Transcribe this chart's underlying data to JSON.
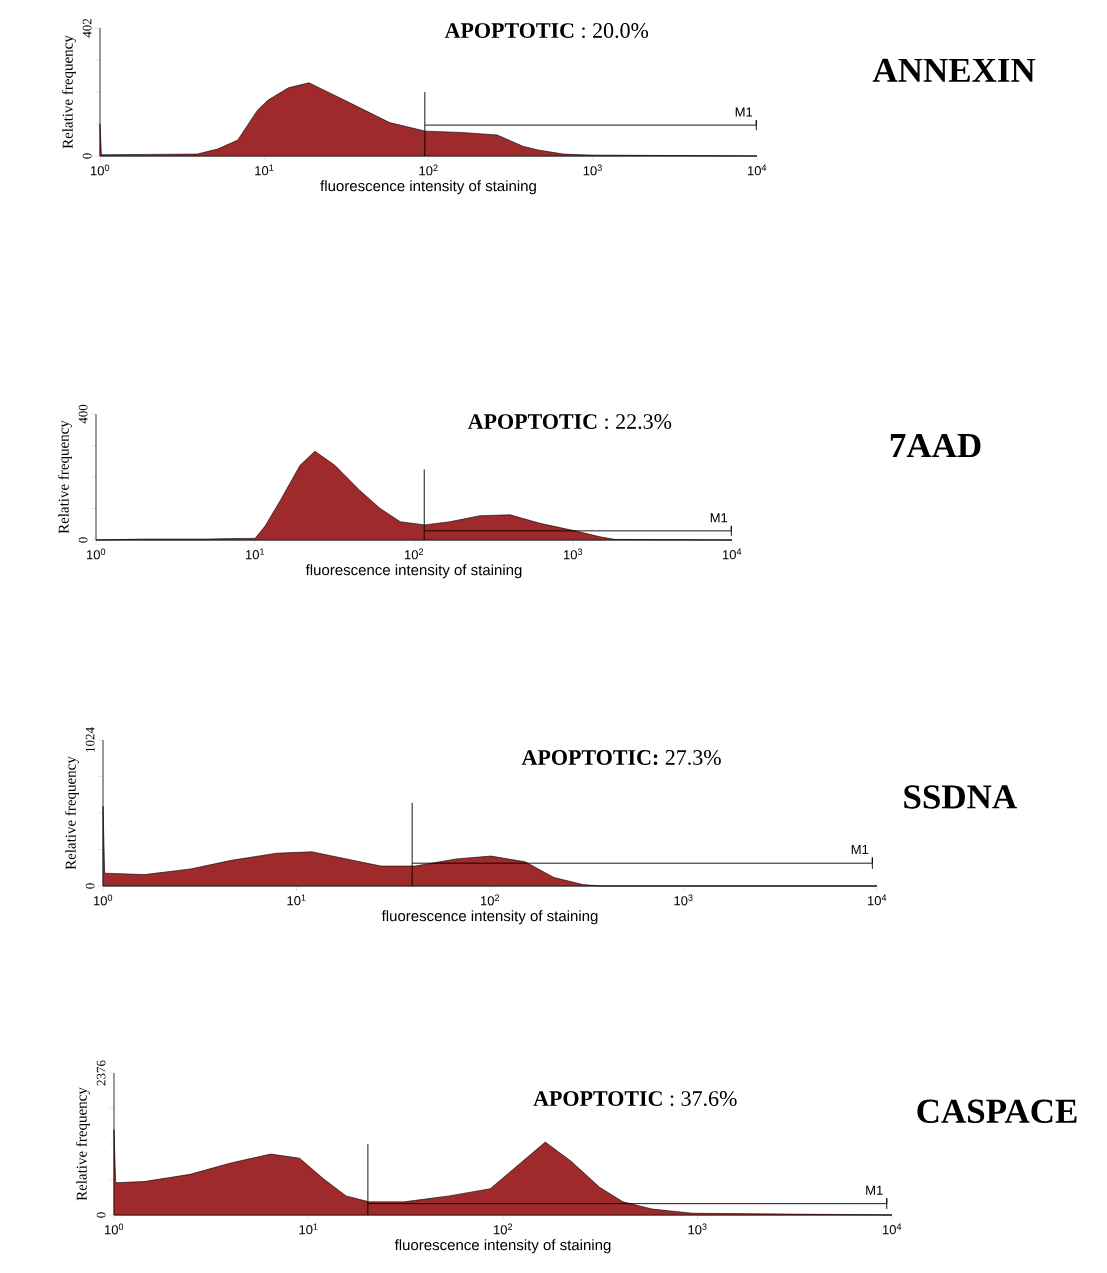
{
  "chart_data": [
    {
      "type": "area",
      "xlabel": "fluorescence intensity of staining",
      "ylabel": "Relative frequency",
      "annotations": [
        "**APOPTOTIC** : 20.0%",
        "ANNEXIN"
      ],
      "log": "x",
      "xlim": [
        1,
        10000
      ],
      "ylim": [
        0,
        402
      ],
      "xticks": [
        {
          "value": 1,
          "label": "10$^{0}$"
        },
        {
          "value": 10,
          "label": "10$^{1}$"
        },
        {
          "value": 100,
          "label": "10$^{2}$"
        },
        {
          "value": 1000,
          "label": "10$^{3}$"
        },
        {
          "value": 10000,
          "label": "10$^{4}$"
        }
      ],
      "yticks": [
        0,
        {
          "value": 100.5,
          "label": null
        },
        {
          "value": 201,
          "label": null
        },
        {
          "value": 301.5,
          "label": null
        },
        402
      ],
      "ref_lines": [
        {
          "axis": "x",
          "value": 95
        }
      ],
      "series": [
        {
          "color": "#9e2a2b",
          "x": [
            1,
            1.02,
            2,
            3.9,
            5.2,
            6.9,
            9.1,
            10.5,
            14,
            18.7,
            24.9,
            38,
            58,
            96,
            159,
            262,
            375,
            464,
            664,
            948,
            10000
          ],
          "values": [
            100,
            4,
            5,
            6,
            22,
            50,
            144,
            175,
            214,
            230,
            199,
            152,
            105,
            78,
            74,
            66,
            31,
            19,
            6,
            3,
            0
          ]
        },
        {
          "type": "line",
          "name": "M1",
          "color": "#000000",
          "x": [
            95,
            9900,
            9900,
            9900
          ],
          "values": [
            97,
            97,
            113,
            81
          ]
        }
      ]
    },
    {
      "type": "area",
      "xlabel": "fluorescence intensity of staining",
      "ylabel": "Relative frequency",
      "annotations": [
        "**APOPTOTIC** : 22.3%",
        "7AAD"
      ],
      "log": "x",
      "xlim": [
        1,
        10000
      ],
      "ylim": [
        0,
        400
      ],
      "xticks": [
        {
          "value": 1,
          "label": "10$^{0}$"
        },
        {
          "value": 10,
          "label": "10$^{1}$"
        },
        {
          "value": 100,
          "label": "10$^{2}$"
        },
        {
          "value": 1000,
          "label": "10$^{3}$"
        },
        {
          "value": 10000,
          "label": "10$^{4}$"
        }
      ],
      "yticks": [
        0,
        {
          "value": 100,
          "label": null
        },
        {
          "value": 200,
          "label": null
        },
        {
          "value": 300,
          "label": null
        },
        400
      ],
      "ref_lines": [
        {
          "axis": "x",
          "value": 116
        }
      ],
      "series": [
        {
          "color": "#9e2a2b",
          "x": [
            1,
            2,
            5,
            8,
            10,
            11.6,
            14.4,
            19.2,
            23.8,
            31.8,
            45.7,
            61,
            82,
            117,
            168,
            260,
            402,
            620,
            1030,
            1480,
            1840,
            10000
          ],
          "values": [
            0,
            3,
            3,
            5,
            5,
            45,
            125,
            237,
            282,
            237,
            157,
            101,
            58,
            48,
            58,
            77,
            80,
            53,
            29,
            10,
            2,
            0
          ]
        },
        {
          "type": "line",
          "name": "M1",
          "color": "#000000",
          "x": [
            116,
            9900,
            9900,
            9900
          ],
          "values": [
            29,
            29,
            45,
            13
          ]
        }
      ]
    },
    {
      "type": "area",
      "xlabel": "fluorescence intensity of staining",
      "ylabel": "Relative frequency",
      "annotations": [
        "**APOPTOTIC:**  27.3%",
        "SSDNA"
      ],
      "log": "x",
      "xlim": [
        1,
        10000
      ],
      "ylim": [
        0,
        1024
      ],
      "xticks": [
        {
          "value": 1,
          "label": "10$^{0}$"
        },
        {
          "value": 10,
          "label": "10$^{1}$"
        },
        {
          "value": 100,
          "label": "10$^{2}$"
        },
        {
          "value": 1000,
          "label": "10$^{3}$"
        },
        {
          "value": 10000,
          "label": "10$^{4}$"
        }
      ],
      "yticks": [
        0,
        {
          "value": 256,
          "label": null
        },
        {
          "value": 512,
          "label": null
        },
        {
          "value": 768,
          "label": null
        },
        1024
      ],
      "ref_lines": [
        {
          "axis": "x",
          "value": 39.6
        }
      ],
      "series": [
        {
          "color": "#9e2a2b",
          "x": [
            1,
            1.02,
            1.64,
            2.84,
            4.6,
            7.9,
            12,
            18.1,
            27.3,
            41,
            67,
            101,
            152,
            214,
            302,
            371,
            10000
          ],
          "values": [
            560,
            90,
            80,
            120,
            180,
            230,
            240,
            190,
            140,
            140,
            190,
            210,
            170,
            60,
            10,
            0,
            0
          ]
        },
        {
          "type": "line",
          "name": "M1",
          "color": "#000000",
          "x": [
            39.6,
            9460,
            9460,
            9460
          ],
          "values": [
            160,
            160,
            200,
            120
          ]
        }
      ]
    },
    {
      "type": "area",
      "xlabel": "fluorescence intensity of staining",
      "ylabel": "Relative frequency",
      "annotations": [
        "**APOPTOTIC** : 37.6%",
        "CASPACE"
      ],
      "log": "x",
      "xlim": [
        1,
        10000
      ],
      "ylim": [
        0,
        2376
      ],
      "xticks": [
        {
          "value": 1,
          "label": "10$^{0}$"
        },
        {
          "value": 10,
          "label": "10$^{1}$"
        },
        {
          "value": 100,
          "label": "10$^{2}$"
        },
        {
          "value": 1000,
          "label": "10$^{3}$"
        },
        {
          "value": 10000,
          "label": "10$^{4}$"
        }
      ],
      "yticks": [
        0,
        {
          "value": 594,
          "label": null
        },
        {
          "value": 1188,
          "label": null
        },
        {
          "value": 1782,
          "label": null
        },
        2376
      ],
      "ref_lines": [
        {
          "axis": "x",
          "value": 20.2
        }
      ],
      "series": [
        {
          "color": "#9e2a2b",
          "x": [
            1,
            1.02,
            1.43,
            2.46,
            3.98,
            6.4,
            9,
            11.9,
            15.6,
            20.5,
            30.9,
            53,
            86,
            121,
            165,
            224,
            315,
            414,
            583,
            940,
            10000
          ],
          "values": [
            1430,
            540,
            560,
            680,
            870,
            1020,
            950,
            610,
            320,
            220,
            220,
            320,
            440,
            850,
            1220,
            900,
            460,
            220,
            100,
            30,
            0
          ]
        },
        {
          "type": "line",
          "name": "M1",
          "color": "#000000",
          "x": [
            20.2,
            9400,
            9400,
            9400
          ],
          "values": [
            190,
            190,
            280,
            100
          ]
        }
      ]
    }
  ]
}
